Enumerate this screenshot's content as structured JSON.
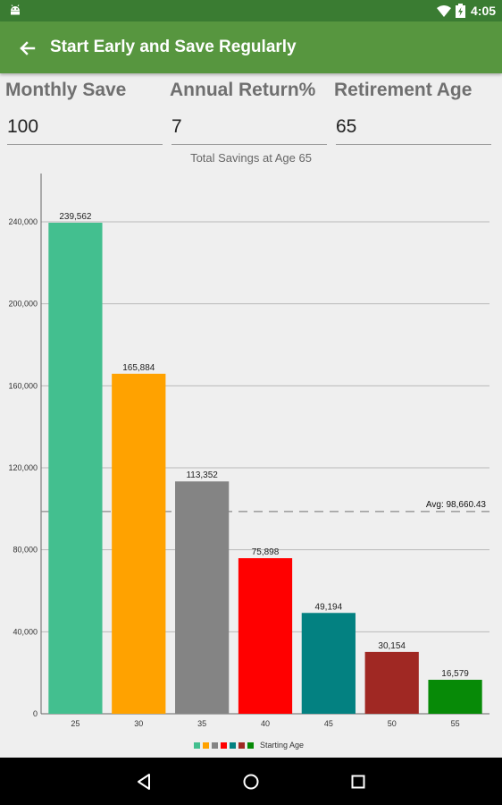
{
  "status_bar": {
    "time": "4:05"
  },
  "app_bar": {
    "title": "Start Early and Save Regularly",
    "back_icon": "arrow-left-icon"
  },
  "inputs": {
    "monthly_save": {
      "label": "Monthly Save",
      "value": "100"
    },
    "annual_return": {
      "label": "Annual Return%",
      "value": "7"
    },
    "retirement_age": {
      "label": "Retirement Age",
      "value": "65"
    }
  },
  "chart_data": {
    "type": "bar",
    "title": "Total Savings at Age 65",
    "xlabel": "Starting Age",
    "categories": [
      "25",
      "30",
      "35",
      "40",
      "45",
      "50",
      "55"
    ],
    "values": [
      239562,
      165884,
      113352,
      75898,
      49194,
      30154,
      16579
    ],
    "value_labels": [
      "239,562",
      "165,884",
      "113,352",
      "75,898",
      "49,194",
      "30,154",
      "16,579"
    ],
    "colors": [
      "#43bf8f",
      "#ffa200",
      "#848484",
      "#ff0000",
      "#038181",
      "#a02823",
      "#078a07"
    ],
    "ylim": [
      0,
      240000
    ],
    "yticks": [
      0,
      40000,
      80000,
      120000,
      160000,
      200000,
      240000
    ],
    "ytick_labels": [
      "0",
      "40,000",
      "80,000",
      "120,000",
      "160,000",
      "200,000",
      "240,000"
    ],
    "average": 98660.43,
    "average_label": "Avg: 98,660.43",
    "legend": {
      "label": "Starting Age",
      "placement": "bottom-center"
    },
    "grid": true
  }
}
